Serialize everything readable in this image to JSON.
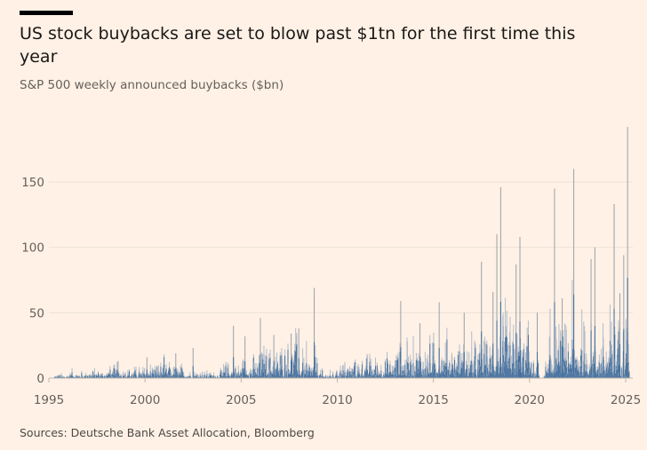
{
  "header": {
    "title": "US stock buybacks are set to blow past $1tn for the first time this year",
    "subtitle": "S&P 500 weekly announced buybacks ($bn)"
  },
  "footer": {
    "source": "Sources: Deutsche Bank Asset Allocation, Bloomberg"
  },
  "colors": {
    "background": "#fff1e5",
    "bar_dark": "#3d6b9b",
    "bar_light": "#a9b6c6",
    "grid": "#ece2d8"
  },
  "chart_data": {
    "type": "bar",
    "title": "S&P 500 weekly announced buybacks ($bn)",
    "xlabel": "",
    "ylabel": "$bn",
    "xlim": [
      1995,
      2025.3
    ],
    "ylim": [
      0,
      195
    ],
    "x_ticks": [
      "1995",
      "2000",
      "2005",
      "2010",
      "2015",
      "2020",
      "2025"
    ],
    "y_ticks": [
      "0",
      "50",
      "100",
      "150"
    ],
    "grid": "horizontal",
    "typical_weekly_level_by_year": {
      "1995": 1,
      "1996": 1.5,
      "1997": 2,
      "1998": 2.5,
      "1999": 2.5,
      "2000": 4,
      "2001": 3,
      "2002": 2,
      "2003": 1.5,
      "2004": 3.5,
      "2005": 5,
      "2006": 7,
      "2007": 9,
      "2008": 5,
      "2009": 1.5,
      "2010": 4,
      "2011": 5,
      "2012": 5,
      "2013": 7,
      "2014": 8,
      "2015": 9,
      "2016": 8,
      "2017": 8,
      "2018": 12,
      "2019": 11,
      "2020": 4,
      "2021": 11,
      "2022": 13,
      "2023": 11,
      "2024": 14,
      "2025": 18
    },
    "notable_peaks": [
      {
        "x": 1998.6,
        "y": 13
      },
      {
        "x": 2000.1,
        "y": 16
      },
      {
        "x": 2001.6,
        "y": 19
      },
      {
        "x": 2002.5,
        "y": 23
      },
      {
        "x": 2004.6,
        "y": 40
      },
      {
        "x": 2005.2,
        "y": 32
      },
      {
        "x": 2006.0,
        "y": 46
      },
      {
        "x": 2006.7,
        "y": 33
      },
      {
        "x": 2007.6,
        "y": 34
      },
      {
        "x": 2008.0,
        "y": 38
      },
      {
        "x": 2008.8,
        "y": 69
      },
      {
        "x": 2013.3,
        "y": 59
      },
      {
        "x": 2014.3,
        "y": 42
      },
      {
        "x": 2015.3,
        "y": 58
      },
      {
        "x": 2016.6,
        "y": 50
      },
      {
        "x": 2017.5,
        "y": 89
      },
      {
        "x": 2018.1,
        "y": 66
      },
      {
        "x": 2018.3,
        "y": 110
      },
      {
        "x": 2018.5,
        "y": 146
      },
      {
        "x": 2019.3,
        "y": 87
      },
      {
        "x": 2019.5,
        "y": 108
      },
      {
        "x": 2020.4,
        "y": 50
      },
      {
        "x": 2021.3,
        "y": 145
      },
      {
        "x": 2021.7,
        "y": 61
      },
      {
        "x": 2022.3,
        "y": 160
      },
      {
        "x": 2023.2,
        "y": 91
      },
      {
        "x": 2023.4,
        "y": 100
      },
      {
        "x": 2024.4,
        "y": 133
      },
      {
        "x": 2024.7,
        "y": 65
      },
      {
        "x": 2024.9,
        "y": 94
      },
      {
        "x": 2025.1,
        "y": 192
      }
    ],
    "gaps": [
      [
        2020.5,
        2020.75
      ]
    ]
  }
}
